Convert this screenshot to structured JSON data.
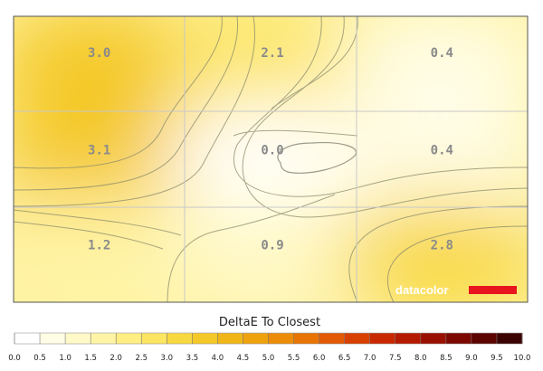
{
  "chart_data": {
    "type": "heatmap",
    "title": "",
    "xlabel": "",
    "ylabel": "",
    "rows": 3,
    "cols": 3,
    "values": [
      [
        3.0,
        2.1,
        0.4
      ],
      [
        3.1,
        0.0,
        0.4
      ],
      [
        1.2,
        0.9,
        2.8
      ]
    ],
    "labels": [
      [
        "3.0",
        "2.1",
        "0.4"
      ],
      [
        "3.1",
        "0.0",
        "0.4"
      ],
      [
        "1.2",
        "0.9",
        "2.8"
      ]
    ],
    "colorbar": {
      "label": "DeltaE To Closest",
      "min": 0.0,
      "max": 10.0,
      "ticks": [
        "0.0",
        "0.5",
        "1.0",
        "1.5",
        "2.0",
        "2.5",
        "3.0",
        "3.5",
        "4.0",
        "4.5",
        "5.0",
        "5.5",
        "6.0",
        "6.5",
        "7.0",
        "7.5",
        "8.0",
        "8.5",
        "9.0",
        "9.5",
        "10.0"
      ],
      "colors": [
        "#ffffff",
        "#fffde6",
        "#fff9c8",
        "#fff4a6",
        "#ffee82",
        "#fce561",
        "#f8d840",
        "#f4c828",
        "#f0b618",
        "#eea20e",
        "#ec8c08",
        "#e87404",
        "#e25a02",
        "#d84000",
        "#c82800",
        "#b41a00",
        "#9a1000",
        "#7c0800",
        "#5c0400",
        "#3a0200",
        "#000000"
      ]
    },
    "grid": true,
    "brand": "datacolor"
  }
}
